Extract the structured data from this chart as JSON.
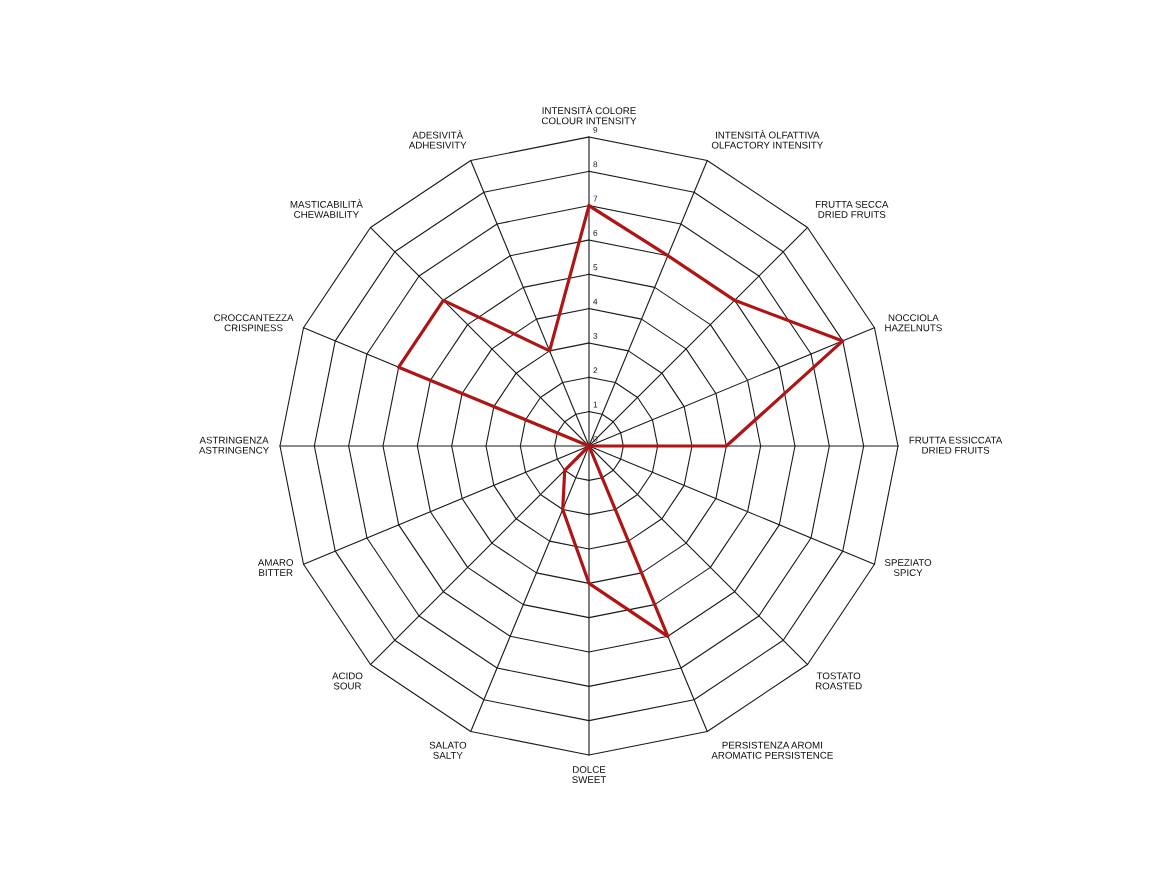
{
  "chart_data": {
    "type": "radar",
    "categories": [
      "INTENSITÀ COLORE\nCOLOUR INTENSITY",
      "INTENSITÀ OLFATTIVA\nOLFACTORY INTENSITY",
      "FRUTTA SECCA\nDRIED FRUITS",
      "NOCCIOLA\nHAZELNUTS",
      "FRUTTA ESSICCATA\nDRIED FRUITS",
      "SPEZIATO\nSPICY",
      "TOSTATO\nROASTED",
      "PERSISTENZA AROMI\nAROMATIC PERSISTENCE",
      "DOLCE\nSWEET",
      "SALATO\nSALTY",
      "ACIDO\nSOUR",
      "AMARO\nBITTER",
      "ASTRINGENZA\nASTRINGENCY",
      "CROCCANTEZZA\nCRISPINESS",
      "MASTICABILITÀ\nCHEWABILITY",
      "ADESIVITÀ\nADHESIVITY"
    ],
    "series": [
      {
        "color": "#b01515",
        "values": [
          7,
          6,
          6,
          8,
          4,
          0,
          0,
          6,
          4,
          2,
          1,
          0,
          0,
          6,
          6,
          3
        ]
      }
    ],
    "ylim": [
      0,
      9
    ],
    "yticks": [
      0,
      1,
      2,
      3,
      4,
      5,
      6,
      7,
      8,
      9
    ],
    "grid": true
  }
}
